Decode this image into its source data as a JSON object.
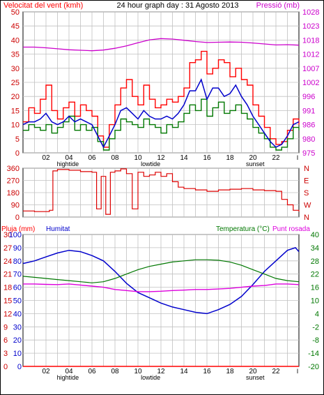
{
  "header": {
    "left_label": "Velocitat del vent (kmh)",
    "title": "24 hour graph day : 31 Agosto 2013",
    "right_label": "Pressió (mb)"
  },
  "colors": {
    "wind": "#ff0000",
    "gust": "#ff0000",
    "average": "#0000cc",
    "direction": "#dd0000",
    "pressure": "#cc00cc",
    "temperature": "#007700",
    "dewpoint": "#dd00dd",
    "humidity": "#0000cc",
    "rain": "#ff0000",
    "grid": "#c0c0c0"
  },
  "panel3_labels": {
    "rain": "Pluja (mm)",
    "humidity": "Humitat",
    "temperature": "Temperatura (°C)",
    "dewpoint": "Punt rosada"
  },
  "x_axis": {
    "ticks": [
      "02",
      "04",
      "06",
      "08",
      "10",
      "12",
      "14",
      "16",
      "18",
      "20",
      "22"
    ],
    "end_marker": "I",
    "events": [
      {
        "label": "hightide",
        "x": 3.9
      },
      {
        "label": "lowtide",
        "x": 11.1
      },
      {
        "label": "sunset",
        "x": 20.2
      }
    ]
  },
  "chart_data": [
    {
      "type": "line",
      "title": "24 hour graph day : 31 Agosto 2013",
      "x_range": [
        0,
        24
      ],
      "y_left": {
        "label": "Velocitat del vent (kmh)",
        "range": [
          0,
          50
        ],
        "ticks": [
          "0",
          "5",
          "10",
          "15",
          "20",
          "25",
          "30",
          "35",
          "40",
          "45",
          "50"
        ]
      },
      "y_right": {
        "label": "Pressió (mb)",
        "range": [
          975,
          1033
        ],
        "ticks": [
          "975",
          "980",
          "986",
          "991",
          "996",
          "1002",
          "1007",
          "1012",
          "1018",
          "1023",
          "1028"
        ]
      },
      "series": [
        {
          "name": "gust",
          "axis": "left",
          "x": [
            0,
            0.5,
            1,
            1.5,
            2,
            2.5,
            3,
            3.5,
            4,
            4.5,
            5,
            5.5,
            6,
            6.5,
            7,
            7.5,
            8,
            8.5,
            9,
            9.5,
            10,
            10.5,
            11,
            11.5,
            12,
            12.5,
            13,
            13.5,
            14,
            14.5,
            15,
            15.5,
            16,
            16.5,
            17,
            17.5,
            18,
            18.5,
            19,
            19.5,
            20,
            20.5,
            21,
            21.5,
            22,
            22.5,
            23,
            23.5,
            24
          ],
          "y": [
            11,
            16,
            14,
            19,
            24,
            15,
            12,
            16,
            18,
            13,
            17,
            15,
            13,
            6,
            2,
            10,
            17,
            23,
            26,
            20,
            17,
            24,
            19,
            16,
            17,
            19,
            18,
            20,
            23,
            32,
            33,
            36,
            28,
            30,
            33,
            32,
            27,
            30,
            26,
            24,
            17,
            13,
            9,
            5,
            3,
            4,
            8,
            12,
            10
          ]
        },
        {
          "name": "wind",
          "axis": "left",
          "x": [
            0,
            0.5,
            1,
            1.5,
            2,
            2.5,
            3,
            3.5,
            4,
            4.5,
            5,
            5.5,
            6,
            6.5,
            7,
            7.5,
            8,
            8.5,
            9,
            9.5,
            10,
            10.5,
            11,
            11.5,
            12,
            12.5,
            13,
            13.5,
            14,
            14.5,
            15,
            15.5,
            16,
            16.5,
            17,
            17.5,
            18,
            18.5,
            19,
            19.5,
            20,
            20.5,
            21,
            21.5,
            22,
            22.5,
            23,
            23.5,
            24
          ],
          "y": [
            8,
            10,
            9,
            8,
            10,
            7,
            9,
            11,
            13,
            8,
            10,
            8,
            9,
            4,
            1,
            5,
            8,
            12,
            11,
            10,
            9,
            12,
            10,
            9,
            7,
            10,
            9,
            11,
            14,
            17,
            15,
            19,
            13,
            16,
            18,
            14,
            15,
            17,
            14,
            12,
            9,
            7,
            5,
            2,
            1,
            2,
            5,
            9,
            8
          ]
        },
        {
          "name": "average",
          "axis": "left",
          "x": [
            0,
            0.5,
            1,
            1.5,
            2,
            2.5,
            3,
            3.5,
            4,
            4.5,
            5,
            5.5,
            6,
            6.5,
            7,
            7.5,
            8,
            8.5,
            9,
            9.5,
            10,
            10.5,
            11,
            11.5,
            12,
            12.5,
            13,
            13.5,
            14,
            14.5,
            15,
            15.5,
            16,
            16.5,
            17,
            17.5,
            18,
            18.5,
            19,
            19.5,
            20,
            20.5,
            21,
            21.5,
            22,
            22.5,
            23,
            23.5,
            24
          ],
          "y": [
            10,
            11,
            11,
            12,
            14,
            11,
            10,
            11,
            13,
            11,
            12,
            11,
            10,
            6,
            2,
            6,
            10,
            15,
            16,
            14,
            12,
            15,
            13,
            12,
            12,
            13,
            12,
            14,
            17,
            22,
            22,
            26,
            19,
            23,
            23,
            20,
            21,
            24,
            20,
            17,
            13,
            10,
            7,
            4,
            2,
            3,
            6,
            10,
            11
          ]
        },
        {
          "name": "pressure",
          "axis": "right",
          "x": [
            0,
            1,
            2,
            3,
            4,
            5,
            6,
            7,
            8,
            9,
            10,
            11,
            12,
            13,
            14,
            15,
            16,
            17,
            18,
            19,
            20,
            21,
            22,
            23,
            24
          ],
          "y": [
            1018.5,
            1018.5,
            1018.2,
            1017.8,
            1017.4,
            1017.2,
            1017.0,
            1017.3,
            1018.0,
            1019.0,
            1020.3,
            1021.5,
            1022.0,
            1021.8,
            1021.3,
            1020.8,
            1020.4,
            1020.5,
            1020.6,
            1020.5,
            1020.2,
            1019.8,
            1019.4,
            1019.5,
            1019.3
          ]
        }
      ]
    },
    {
      "type": "line",
      "y_left": {
        "range": [
          0,
          360
        ],
        "ticks": [
          "0",
          "90",
          "180",
          "270",
          "360"
        ]
      },
      "y_right": {
        "ticks": [
          "N",
          "W",
          "S",
          "E",
          "N"
        ]
      },
      "series": [
        {
          "name": "wind_direction",
          "axis": "left",
          "x": [
            0,
            1,
            2,
            2.3,
            2.6,
            3,
            4,
            5,
            6,
            6.4,
            6.8,
            7.2,
            7.6,
            8,
            8.5,
            9,
            9.5,
            10,
            10.5,
            11,
            11.5,
            12,
            12.5,
            13,
            13.5,
            14,
            15,
            16,
            17,
            18,
            19,
            20,
            21,
            22,
            22.5,
            23,
            23.5,
            24
          ],
          "y": [
            45,
            40,
            40,
            50,
            340,
            350,
            345,
            335,
            330,
            60,
            300,
            20,
            330,
            340,
            355,
            320,
            60,
            330,
            300,
            310,
            330,
            300,
            320,
            260,
            220,
            210,
            200,
            190,
            200,
            205,
            210,
            200,
            195,
            190,
            130,
            90,
            50,
            40
          ]
        }
      ]
    },
    {
      "type": "line",
      "y_left_rain": {
        "label": "Pluja (mm)",
        "range": [
          0,
          30
        ],
        "ticks": [
          "0",
          "3",
          "6",
          "9",
          "12",
          "15",
          "18",
          "21",
          "24",
          "27",
          "30"
        ]
      },
      "y_left_humidity": {
        "label": "Humitat",
        "range": [
          0,
          100
        ],
        "ticks": [
          "0",
          "10",
          "20",
          "30",
          "40",
          "50",
          "60",
          "70",
          "80",
          "90",
          "100"
        ]
      },
      "y_right": {
        "label": "Temperatura (°C)",
        "range": [
          -20,
          40
        ],
        "ticks": [
          "-20",
          "-14",
          "-8",
          "-2",
          "4",
          "10",
          "16",
          "22",
          "28",
          "34",
          "40"
        ]
      },
      "series": [
        {
          "name": "humidity",
          "axis": "left_humidity",
          "x": [
            0,
            1,
            2,
            3,
            4,
            5,
            6,
            7,
            8,
            9,
            10,
            11,
            12,
            13,
            14,
            15,
            16,
            17,
            18,
            19,
            20,
            21,
            22,
            23,
            23.7,
            24
          ],
          "y": [
            78,
            80,
            83,
            86,
            88,
            87,
            84,
            80,
            72,
            63,
            56,
            52,
            48,
            45,
            43,
            41,
            40,
            43,
            47,
            53,
            62,
            72,
            80,
            88,
            90,
            87
          ]
        },
        {
          "name": "temperature",
          "axis": "right",
          "x": [
            0,
            1,
            2,
            3,
            4,
            5,
            6,
            7,
            8,
            9,
            10,
            11,
            12,
            13,
            14,
            15,
            16,
            17,
            18,
            19,
            20,
            21,
            22,
            23,
            24
          ],
          "y": [
            21,
            20.5,
            20,
            19.5,
            19,
            18.5,
            18,
            18.5,
            20,
            22,
            24,
            25.5,
            26.5,
            27.5,
            28,
            28.5,
            28.5,
            28.3,
            27.5,
            26,
            24,
            22,
            20,
            19,
            18.5
          ]
        },
        {
          "name": "dewpoint",
          "axis": "right",
          "x": [
            0,
            1,
            2,
            3,
            4,
            5,
            6,
            7,
            8,
            9,
            10,
            11,
            12,
            13,
            14,
            15,
            16,
            17,
            18,
            19,
            20,
            21,
            22,
            23,
            24
          ],
          "y": [
            17.5,
            17.5,
            17.3,
            17.2,
            17.5,
            17,
            16.5,
            16,
            15,
            14.5,
            14,
            14,
            14.2,
            14.5,
            14.7,
            15,
            15,
            15.2,
            15.5,
            16,
            16.5,
            16.8,
            17.5,
            17.5,
            17.2
          ]
        },
        {
          "name": "rain",
          "axis": "left_rain",
          "x": [
            0,
            24
          ],
          "y": [
            0,
            0
          ]
        }
      ]
    }
  ]
}
